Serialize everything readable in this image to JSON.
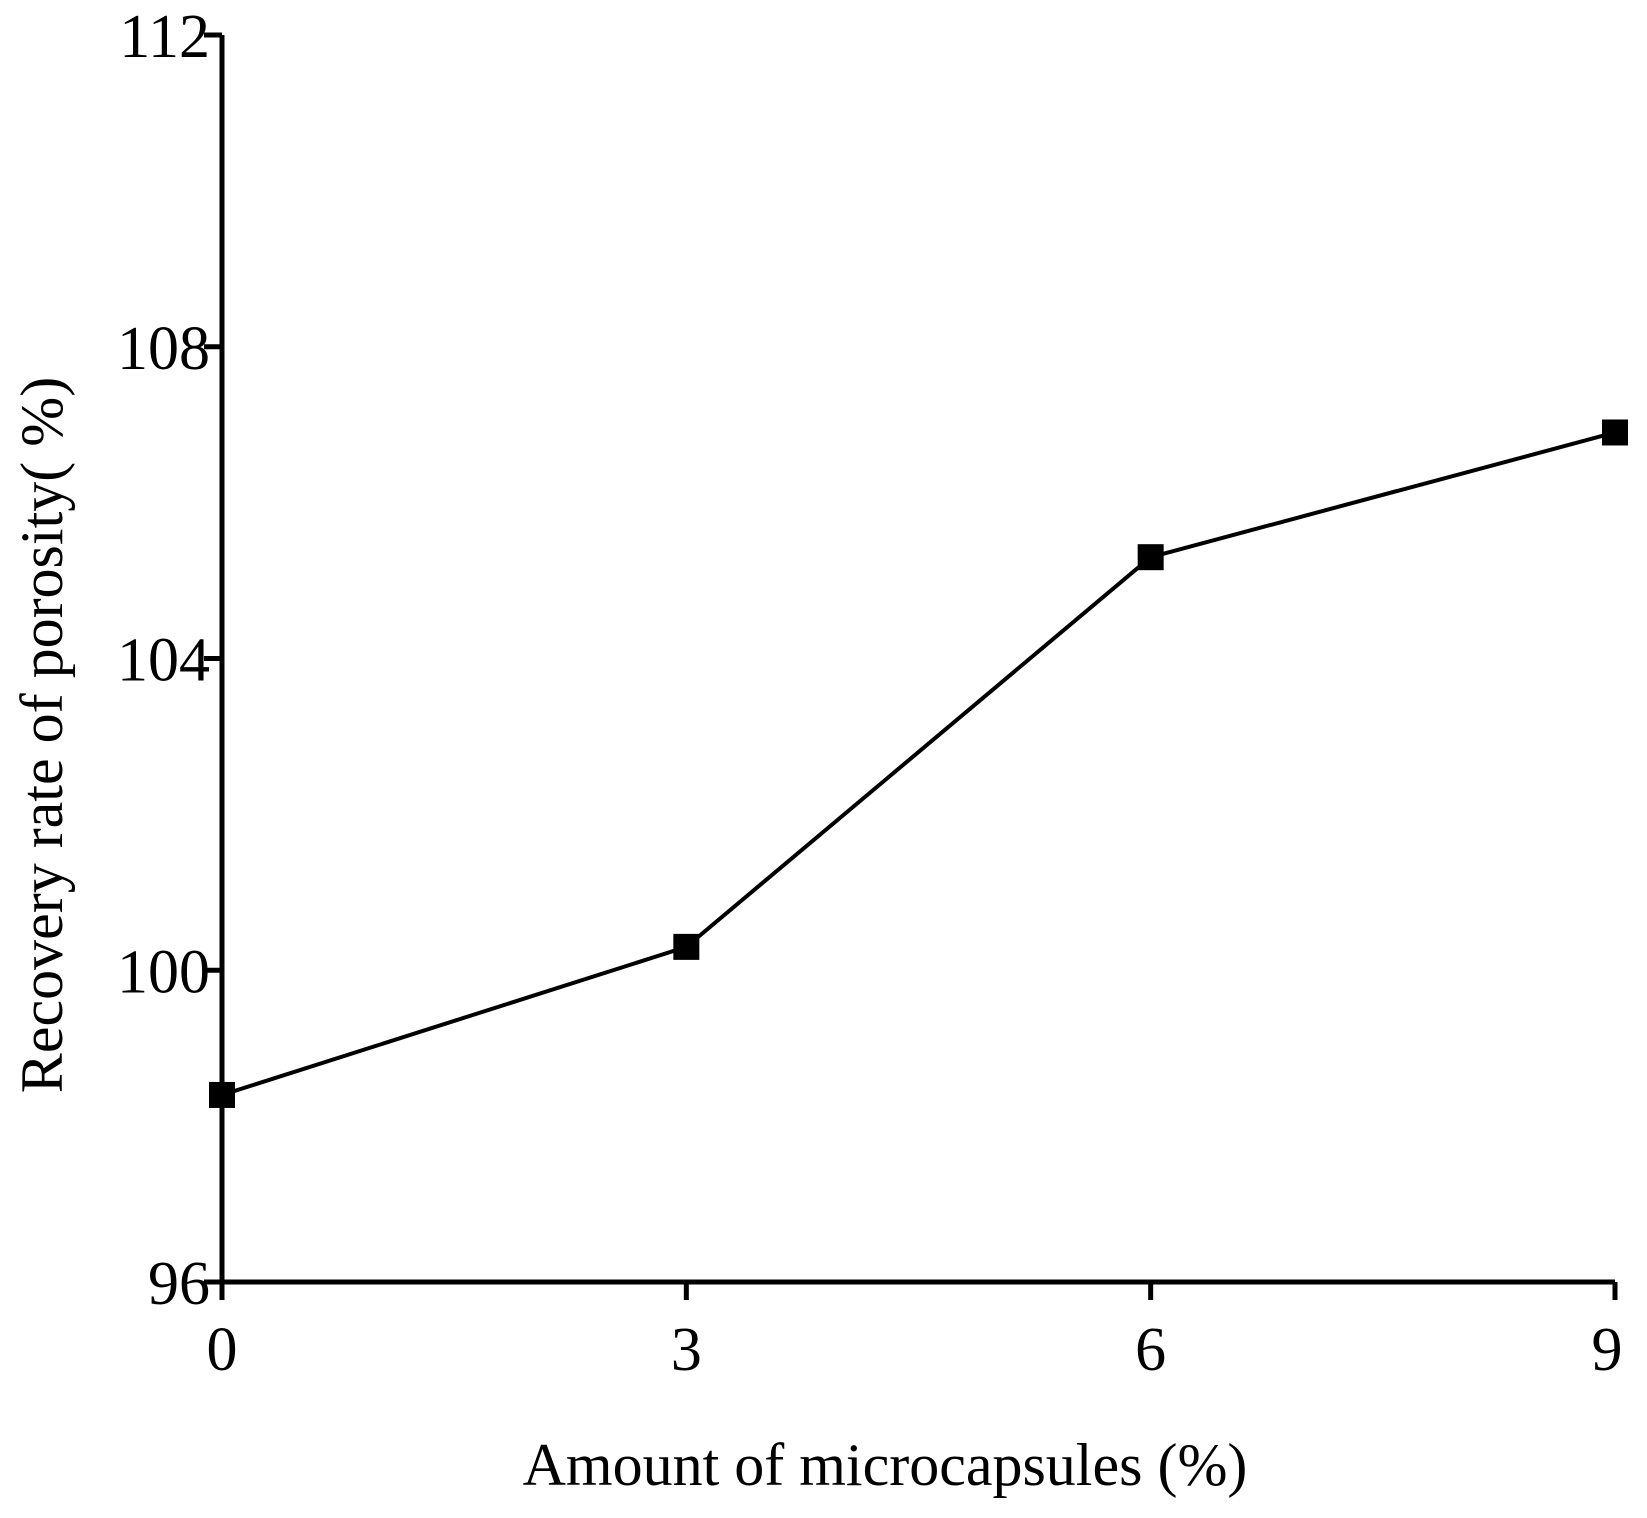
{
  "chart_data": {
    "type": "line",
    "title": "",
    "xlabel": "Amount of microcapsules (%)",
    "ylabel": "Recovery rate of porosity(  %)",
    "x": [
      0,
      3,
      6,
      9
    ],
    "series": [
      {
        "name": "Recovery rate of porosity",
        "values": [
          98.4,
          100.3,
          105.3,
          106.9
        ],
        "marker": "square"
      }
    ],
    "xlim": [
      0,
      9
    ],
    "ylim": [
      96,
      112
    ],
    "xticks": [
      0,
      3,
      6,
      9
    ],
    "xtick_labels": [
      "0",
      "3",
      "6",
      "9"
    ],
    "yticks": [
      96,
      100,
      104,
      108,
      112
    ],
    "ytick_labels": [
      "96",
      "100",
      "104",
      "108",
      "112"
    ],
    "grid": false,
    "legend": "none",
    "colors": {
      "line": "#000000",
      "axis": "#000000",
      "background": "#ffffff"
    }
  }
}
